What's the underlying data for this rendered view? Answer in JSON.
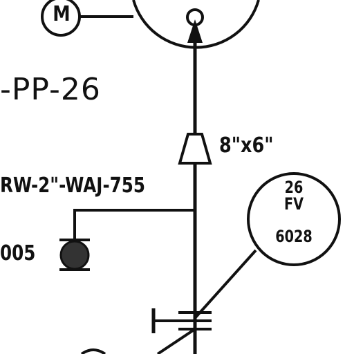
{
  "diagram": {
    "motor": {
      "letter": "M"
    },
    "line_number": "-PP-26",
    "reducer": {
      "size": "8\"x6\""
    },
    "branch_pipe": {
      "label": "RW-2\"-WAJ-755"
    },
    "drain": {
      "tag_fragment": "005"
    },
    "instrument": {
      "line1": "26",
      "line2": "FV",
      "number": "6028"
    },
    "colors": {
      "ink": "#111111",
      "background": "#ffffff",
      "drain_fill": "#333333"
    }
  }
}
